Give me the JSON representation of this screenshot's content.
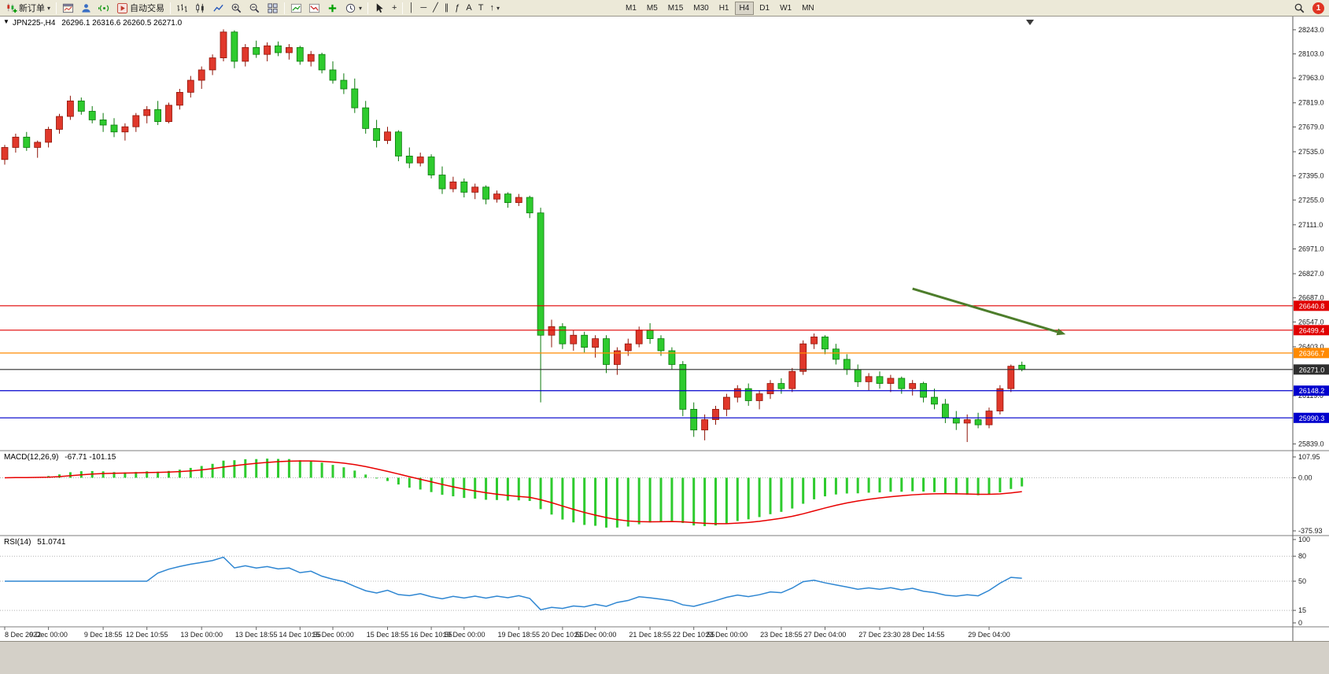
{
  "toolbar": {
    "new_order_label": "新订单",
    "autotrade_label": "自动交易",
    "timeframes": [
      "M1",
      "M5",
      "M15",
      "M30",
      "H1",
      "H4",
      "D1",
      "W1",
      "MN"
    ],
    "active_timeframe": "H4",
    "notification_badge": "1",
    "icons": {
      "dropdown": "▾",
      "collapse": "▼",
      "crosshair": "+",
      "vline": "│",
      "hline": "─",
      "trendline": "╱",
      "channel": "∥",
      "fibonacci": "ƒ",
      "text": "A",
      "text-label": "T",
      "arrow": "↑"
    }
  },
  "chart_data": {
    "type": "candlestick",
    "title": "JPN225-,H4",
    "ohlc_text": "26296.1 26316.6 26260.5 26271.0",
    "price_range": [
      25800,
      28320
    ],
    "bull_color": "#e0382b",
    "bear_color": "#2ecb2e",
    "candles": [
      [
        27490,
        27575,
        27460,
        27560
      ],
      [
        27560,
        27640,
        27530,
        27620
      ],
      [
        27620,
        27650,
        27540,
        27560
      ],
      [
        27560,
        27600,
        27500,
        27590
      ],
      [
        27590,
        27680,
        27560,
        27665
      ],
      [
        27665,
        27755,
        27640,
        27740
      ],
      [
        27740,
        27860,
        27720,
        27830
      ],
      [
        27830,
        27850,
        27750,
        27770
      ],
      [
        27770,
        27800,
        27700,
        27720
      ],
      [
        27720,
        27760,
        27650,
        27690
      ],
      [
        27690,
        27730,
        27620,
        27650
      ],
      [
        27650,
        27700,
        27600,
        27680
      ],
      [
        27680,
        27760,
        27650,
        27745
      ],
      [
        27745,
        27800,
        27700,
        27780
      ],
      [
        27780,
        27830,
        27690,
        27710
      ],
      [
        27710,
        27820,
        27700,
        27805
      ],
      [
        27805,
        27900,
        27780,
        27880
      ],
      [
        27880,
        27975,
        27850,
        27950
      ],
      [
        27950,
        28030,
        27900,
        28010
      ],
      [
        28010,
        28100,
        27980,
        28080
      ],
      [
        28080,
        28245,
        28060,
        28230
      ],
      [
        28230,
        28240,
        28020,
        28060
      ],
      [
        28060,
        28160,
        28030,
        28140
      ],
      [
        28140,
        28180,
        28080,
        28100
      ],
      [
        28100,
        28170,
        28060,
        28150
      ],
      [
        28150,
        28175,
        28090,
        28110
      ],
      [
        28110,
        28160,
        28070,
        28140
      ],
      [
        28140,
        28150,
        28040,
        28060
      ],
      [
        28060,
        28120,
        28030,
        28100
      ],
      [
        28100,
        28110,
        27990,
        28010
      ],
      [
        28010,
        28060,
        27930,
        27950
      ],
      [
        27950,
        27990,
        27870,
        27900
      ],
      [
        27900,
        27960,
        27760,
        27790
      ],
      [
        27790,
        27830,
        27640,
        27670
      ],
      [
        27670,
        27720,
        27560,
        27600
      ],
      [
        27600,
        27680,
        27580,
        27650
      ],
      [
        27650,
        27660,
        27480,
        27510
      ],
      [
        27510,
        27560,
        27440,
        27470
      ],
      [
        27470,
        27530,
        27450,
        27505
      ],
      [
        27505,
        27520,
        27380,
        27400
      ],
      [
        27400,
        27450,
        27290,
        27320
      ],
      [
        27320,
        27390,
        27300,
        27360
      ],
      [
        27360,
        27380,
        27270,
        27300
      ],
      [
        27300,
        27350,
        27260,
        27330
      ],
      [
        27330,
        27340,
        27230,
        27260
      ],
      [
        27260,
        27310,
        27240,
        27290
      ],
      [
        27290,
        27300,
        27210,
        27240
      ],
      [
        27240,
        27290,
        27220,
        27270
      ],
      [
        27270,
        27280,
        27150,
        27180
      ],
      [
        27180,
        27210,
        26080,
        26470
      ],
      [
        26470,
        26560,
        26400,
        26520
      ],
      [
        26520,
        26540,
        26390,
        26420
      ],
      [
        26420,
        26500,
        26380,
        26470
      ],
      [
        26470,
        26490,
        26370,
        26400
      ],
      [
        26400,
        26470,
        26340,
        26450
      ],
      [
        26450,
        26470,
        26250,
        26300
      ],
      [
        26300,
        26400,
        26240,
        26380
      ],
      [
        26380,
        26450,
        26350,
        26420
      ],
      [
        26420,
        26520,
        26400,
        26500
      ],
      [
        26500,
        26540,
        26420,
        26450
      ],
      [
        26450,
        26470,
        26350,
        26380
      ],
      [
        26380,
        26400,
        26270,
        26300
      ],
      [
        26300,
        26320,
        26000,
        26040
      ],
      [
        26040,
        26080,
        25880,
        25920
      ],
      [
        25920,
        26010,
        25860,
        25980
      ],
      [
        25980,
        26060,
        25950,
        26040
      ],
      [
        26040,
        26130,
        26000,
        26110
      ],
      [
        26110,
        26180,
        26080,
        26160
      ],
      [
        26160,
        26190,
        26060,
        26090
      ],
      [
        26090,
        26150,
        26040,
        26130
      ],
      [
        26130,
        26210,
        26100,
        26190
      ],
      [
        26190,
        26220,
        26130,
        26160
      ],
      [
        26160,
        26280,
        26140,
        26260
      ],
      [
        26260,
        26440,
        26240,
        26420
      ],
      [
        26420,
        26480,
        26390,
        26460
      ],
      [
        26460,
        26470,
        26360,
        26390
      ],
      [
        26390,
        26420,
        26300,
        26330
      ],
      [
        26330,
        26360,
        26240,
        26270
      ],
      [
        26270,
        26300,
        26170,
        26200
      ],
      [
        26200,
        26250,
        26150,
        26230
      ],
      [
        26230,
        26260,
        26160,
        26190
      ],
      [
        26190,
        26240,
        26140,
        26220
      ],
      [
        26220,
        26230,
        26130,
        26160
      ],
      [
        26160,
        26210,
        26120,
        26190
      ],
      [
        26190,
        26200,
        26080,
        26110
      ],
      [
        26110,
        26160,
        26040,
        26070
      ],
      [
        26070,
        26100,
        25960,
        25990
      ],
      [
        25990,
        26030,
        25920,
        25960
      ],
      [
        25960,
        26010,
        25850,
        25980
      ],
      [
        25980,
        26020,
        25930,
        25950
      ],
      [
        25950,
        26050,
        25930,
        26030
      ],
      [
        26030,
        26180,
        26010,
        26160
      ],
      [
        26160,
        26300,
        26140,
        26290
      ],
      [
        26296.1,
        26316.6,
        26260.5,
        26271
      ]
    ],
    "time_labels": [
      {
        "i": 0,
        "t": "8 Dec 2022"
      },
      {
        "i": 4,
        "t": "9 Dec 00:00"
      },
      {
        "i": 9,
        "t": "9 Dec 18:55"
      },
      {
        "i": 13,
        "t": "12 Dec 10:55"
      },
      {
        "i": 18,
        "t": "13 Dec 00:00"
      },
      {
        "i": 23,
        "t": "13 Dec 18:55"
      },
      {
        "i": 27,
        "t": "14 Dec 10:55"
      },
      {
        "i": 30,
        "t": "15 Dec 00:00"
      },
      {
        "i": 35,
        "t": "15 Dec 18:55"
      },
      {
        "i": 39,
        "t": "16 Dec 10:55"
      },
      {
        "i": 42,
        "t": "19 Dec 00:00"
      },
      {
        "i": 47,
        "t": "19 Dec 18:55"
      },
      {
        "i": 51,
        "t": "20 Dec 10:55"
      },
      {
        "i": 54,
        "t": "21 Dec 00:00"
      },
      {
        "i": 59,
        "t": "21 Dec 18:55"
      },
      {
        "i": 63,
        "t": "22 Dec 10:55"
      },
      {
        "i": 66,
        "t": "23 Dec 00:00"
      },
      {
        "i": 71,
        "t": "23 Dec 18:55"
      },
      {
        "i": 75,
        "t": "27 Dec 04:00"
      },
      {
        "i": 80,
        "t": "27 Dec 23:30"
      },
      {
        "i": 84,
        "t": "28 Dec 14:55"
      },
      {
        "i": 90,
        "t": "29 Dec 04:00"
      }
    ],
    "price_axis_labels": [
      "28243.0",
      "28103.0",
      "27963.0",
      "27819.0",
      "27679.0",
      "27535.0",
      "27395.0",
      "27255.0",
      "27111.0",
      "26971.0",
      "26827.0",
      "26687.0",
      "26547.0",
      "26403.0",
      "26119.0",
      "25839.0"
    ],
    "price_lines": [
      {
        "price": 26640.8,
        "label": "26640.8",
        "color": "#e00000"
      },
      {
        "price": 26499.4,
        "label": "26499.4",
        "color": "#e00000"
      },
      {
        "price": 26366.7,
        "label": "26366.7",
        "color": "#ff8a00"
      },
      {
        "price": 26271.0,
        "label": "26271.0",
        "color": "#2f2f2f"
      },
      {
        "price": 26148.2,
        "label": "26148.2",
        "color": "#0000cd"
      },
      {
        "price": 25990.3,
        "label": "25990.3",
        "color": "#0000cd"
      }
    ],
    "annotation_arrow": {
      "from_index": 83,
      "from_price": 26740,
      "to_index": 97,
      "to_price": 26475,
      "color": "#4d7d2b"
    },
    "indicators": [
      {
        "label": "MACD(12,26,9)",
        "values": "-67.71 -101.15",
        "params": [
          12,
          26,
          9
        ],
        "axis_top": "107.95",
        "axis_zero": "0.00",
        "axis_bottom": "-375.93",
        "histogram_color": "#2ecb2e",
        "signal_color": "#e80000"
      },
      {
        "label": "RSI(14)",
        "value": "51.0741",
        "period": 14,
        "levels": [
          80,
          50,
          15
        ],
        "axis_labels": [
          100,
          80,
          50,
          15,
          0
        ],
        "line_color": "#2e86d2"
      }
    ]
  }
}
